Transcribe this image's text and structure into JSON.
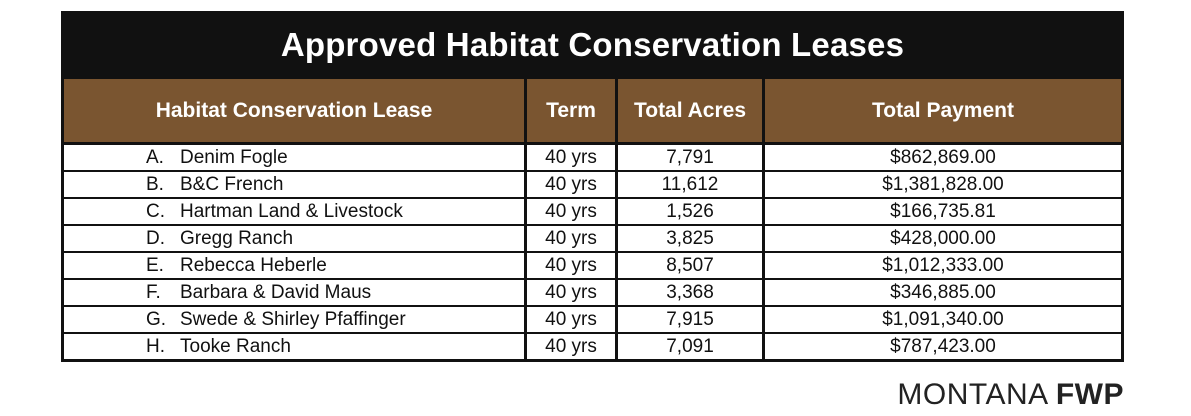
{
  "title": "Approved Habitat Conservation Leases",
  "headers": {
    "lease": "Habitat Conservation Lease",
    "term": "Term",
    "acres": "Total Acres",
    "payment": "Total Payment"
  },
  "rows": [
    {
      "letter": "A.",
      "name": "Denim Fogle",
      "term": "40 yrs",
      "acres": "7,791",
      "payment": "$862,869.00"
    },
    {
      "letter": "B.",
      "name": "B&C French",
      "term": "40 yrs",
      "acres": "11,612",
      "payment": "$1,381,828.00"
    },
    {
      "letter": "C.",
      "name": "Hartman Land & Livestock",
      "term": "40 yrs",
      "acres": "1,526",
      "payment": "$166,735.81"
    },
    {
      "letter": "D.",
      "name": "Gregg Ranch",
      "term": "40 yrs",
      "acres": "3,825",
      "payment": "$428,000.00"
    },
    {
      "letter": "E.",
      "name": "Rebecca Heberle",
      "term": "40 yrs",
      "acres": "8,507",
      "payment": "$1,012,333.00"
    },
    {
      "letter": "F.",
      "name": "Barbara & David Maus",
      "term": "40 yrs",
      "acres": "3,368",
      "payment": "$346,885.00"
    },
    {
      "letter": "G.",
      "name": "Swede & Shirley Pfaffinger",
      "term": "40 yrs",
      "acres": "7,915",
      "payment": "$1,091,340.00"
    },
    {
      "letter": "H.",
      "name": "Tooke Ranch",
      "term": "40 yrs",
      "acres": "7,091",
      "payment": "$787,423.00"
    }
  ],
  "logo": {
    "text_light": "MONTANA",
    "text_bold": "FWP"
  }
}
